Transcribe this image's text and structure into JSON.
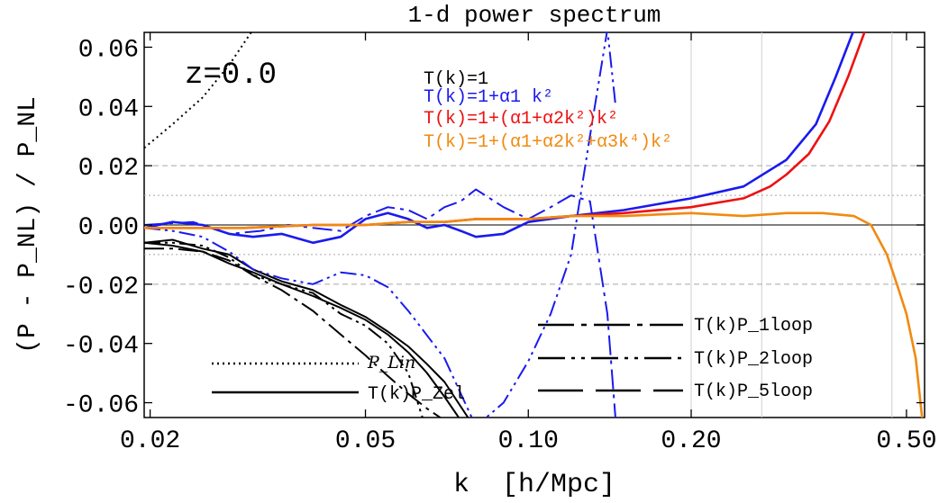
{
  "chart_data": {
    "type": "line",
    "title": "1-d power spectrum",
    "xlabel": "k  [h/Mpc]",
    "ylabel": "(P - P_NL) / P_NL",
    "xscale": "log",
    "xlim": [
      0.0195,
      0.54
    ],
    "ylim": [
      -0.065,
      0.065
    ],
    "xticks": [
      0.02,
      0.05,
      0.1,
      0.2,
      0.5
    ],
    "xtick_labels": [
      "0.02",
      "0.05",
      "0.10",
      "0.20",
      "0.50"
    ],
    "yticks": [
      -0.06,
      -0.04,
      -0.02,
      0.0,
      0.02,
      0.04,
      0.06
    ],
    "ytick_labels": [
      "-0.06",
      "-0.04",
      "-0.02",
      "0.00",
      "0.02",
      "0.04",
      "0.06"
    ],
    "reference_lines": {
      "h_dashed": [
        0.02,
        -0.02
      ],
      "h_dotted": [
        0.01,
        -0.01
      ],
      "h_solid": [
        0.0
      ],
      "v_light": [
        0.2,
        0.27,
        0.47
      ]
    },
    "redshift_label": "z=0.0",
    "legend_top": [
      {
        "label": "T(k)=1",
        "color": "#000000"
      },
      {
        "label": "T(k)=1+α1 k²",
        "color": "#1a1aee"
      },
      {
        "label": "T(k)=1+(α1+α2k²)k²",
        "color": "#ee1111"
      },
      {
        "label": "T(k)=1+(α1+α2k²+α3k⁴)k²",
        "color": "#f08a10"
      }
    ],
    "legend_bottom_left": [
      {
        "label": "P_Lin",
        "style": "dotted"
      },
      {
        "label": "T(k)P_Zel",
        "style": "solid"
      }
    ],
    "legend_bottom_right": [
      {
        "label": "T(k)P_1loop",
        "style": "dashdot"
      },
      {
        "label": "T(k)P_2loop",
        "style": "dashdotdot"
      },
      {
        "label": "T(k)P_5loop",
        "style": "longdash"
      }
    ],
    "series": [
      {
        "color": "#000000",
        "style": "dotted",
        "x": [
          0.0195,
          0.022,
          0.025,
          0.028,
          0.031
        ],
        "y": [
          0.026,
          0.034,
          0.043,
          0.054,
          0.066
        ]
      },
      {
        "color": "#000000",
        "style": "solid",
        "x": [
          0.0195,
          0.022,
          0.025,
          0.028,
          0.031,
          0.035,
          0.04,
          0.045,
          0.05,
          0.055,
          0.06,
          0.065,
          0.07,
          0.075
        ],
        "y": [
          -0.006,
          -0.007,
          -0.009,
          -0.013,
          -0.016,
          -0.02,
          -0.024,
          -0.028,
          -0.032,
          -0.037,
          -0.043,
          -0.05,
          -0.058,
          -0.066
        ]
      },
      {
        "color": "#000000",
        "style": "solid",
        "x": [
          0.0195,
          0.022,
          0.025,
          0.028,
          0.031,
          0.035,
          0.04,
          0.045,
          0.05,
          0.055,
          0.06,
          0.065,
          0.07,
          0.078
        ],
        "y": [
          -0.006,
          -0.005,
          -0.008,
          -0.01,
          -0.015,
          -0.019,
          -0.022,
          -0.027,
          -0.031,
          -0.036,
          -0.041,
          -0.047,
          -0.053,
          -0.066
        ]
      },
      {
        "color": "#000000",
        "style": "dashdot",
        "x": [
          0.0195,
          0.022,
          0.025,
          0.028,
          0.031,
          0.035,
          0.04,
          0.045,
          0.05,
          0.055,
          0.06,
          0.065,
          0.07
        ],
        "y": [
          -0.008,
          -0.008,
          -0.009,
          -0.012,
          -0.017,
          -0.022,
          -0.029,
          -0.037,
          -0.044,
          -0.051,
          -0.057,
          -0.062,
          -0.066
        ]
      },
      {
        "color": "#000000",
        "style": "dashdotdot",
        "x": [
          0.0195,
          0.022,
          0.025,
          0.028,
          0.031,
          0.035,
          0.04,
          0.045,
          0.05,
          0.055,
          0.06,
          0.064
        ],
        "y": [
          -0.006,
          -0.006,
          -0.007,
          -0.011,
          -0.017,
          -0.02,
          -0.023,
          -0.03,
          -0.034,
          -0.04,
          -0.05,
          -0.066
        ]
      },
      {
        "color": "#1a1aee",
        "style": "dashdotdot",
        "x": [
          0.0195,
          0.022,
          0.025,
          0.028,
          0.031,
          0.035,
          0.04,
          0.045,
          0.05,
          0.055,
          0.06,
          0.07,
          0.08,
          0.09,
          0.1,
          0.11,
          0.12,
          0.13,
          0.14,
          0.145
        ],
        "y": [
          -0.001,
          -0.002,
          -0.004,
          -0.009,
          -0.015,
          -0.018,
          -0.02,
          -0.016,
          -0.017,
          -0.021,
          -0.029,
          -0.045,
          -0.068,
          -0.06,
          -0.046,
          -0.03,
          -0.01,
          0.03,
          0.066,
          0.04
        ]
      },
      {
        "color": "#1a1aee",
        "style": "dashdot",
        "x": [
          0.0195,
          0.024,
          0.028,
          0.032,
          0.036,
          0.04,
          0.045,
          0.05,
          0.055,
          0.06,
          0.065,
          0.07,
          0.075,
          0.08,
          0.09,
          0.1,
          0.11,
          0.12,
          0.13,
          0.14,
          0.145
        ],
        "y": [
          0.0,
          0.001,
          -0.003,
          -0.002,
          0.0,
          -0.001,
          -0.002,
          0.003,
          0.006,
          0.005,
          0.002,
          0.006,
          0.008,
          0.012,
          0.006,
          0.002,
          0.006,
          0.01,
          0.008,
          -0.03,
          -0.066
        ]
      },
      {
        "color": "#1a1aee",
        "style": "solid",
        "x": [
          0.0195,
          0.022,
          0.025,
          0.028,
          0.031,
          0.035,
          0.04,
          0.045,
          0.05,
          0.055,
          0.06,
          0.065,
          0.07,
          0.075,
          0.08,
          0.09,
          0.1,
          0.12,
          0.15,
          0.2,
          0.25,
          0.3,
          0.34,
          0.37,
          0.4
        ],
        "y": [
          -0.001,
          0.001,
          0.0,
          -0.003,
          -0.004,
          -0.003,
          -0.006,
          -0.004,
          0.002,
          0.004,
          0.002,
          -0.001,
          0.0,
          -0.002,
          -0.004,
          -0.003,
          0.001,
          0.003,
          0.005,
          0.009,
          0.013,
          0.022,
          0.034,
          0.05,
          0.066
        ]
      },
      {
        "color": "#ee1111",
        "style": "solid",
        "x": [
          0.0195,
          0.03,
          0.04,
          0.05,
          0.06,
          0.07,
          0.08,
          0.1,
          0.12,
          0.15,
          0.2,
          0.25,
          0.28,
          0.3,
          0.33,
          0.36,
          0.39,
          0.42
        ],
        "y": [
          -0.001,
          -0.001,
          0.0,
          0.0,
          0.001,
          0.001,
          0.002,
          0.002,
          0.003,
          0.004,
          0.006,
          0.009,
          0.013,
          0.017,
          0.024,
          0.035,
          0.05,
          0.066
        ]
      },
      {
        "color": "#f08a10",
        "style": "solid",
        "x": [
          0.0195,
          0.03,
          0.04,
          0.05,
          0.06,
          0.07,
          0.08,
          0.1,
          0.12,
          0.15,
          0.2,
          0.25,
          0.3,
          0.35,
          0.4,
          0.43,
          0.46,
          0.48,
          0.5,
          0.52,
          0.535
        ],
        "y": [
          -0.001,
          -0.001,
          0.0,
          0.0,
          0.001,
          0.001,
          0.002,
          0.002,
          0.003,
          0.003,
          0.004,
          0.003,
          0.004,
          0.004,
          0.003,
          0.0,
          -0.01,
          -0.02,
          -0.03,
          -0.045,
          -0.066
        ]
      }
    ]
  }
}
